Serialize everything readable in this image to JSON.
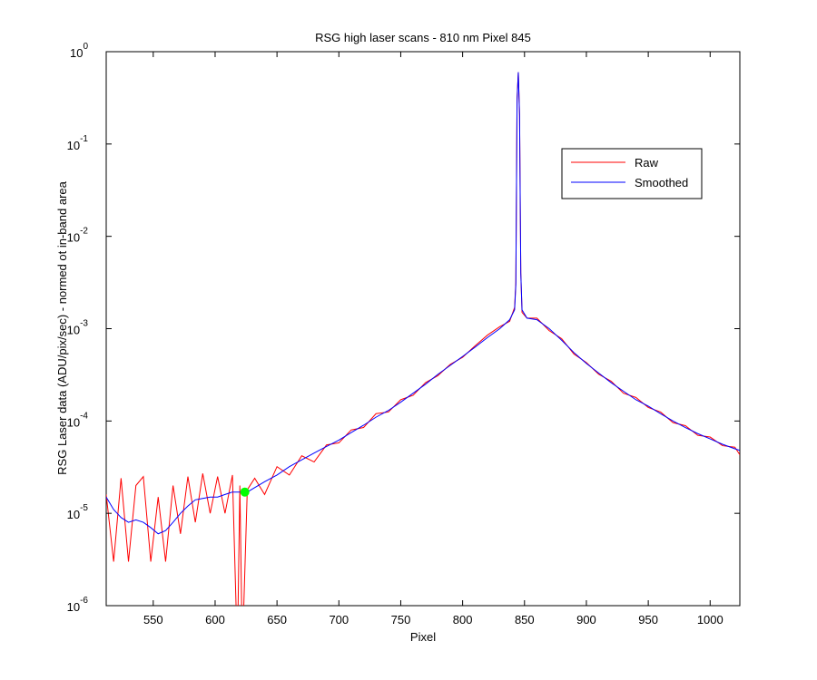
{
  "chart_data": {
    "type": "line",
    "title": "RSG high laser scans  - 810 nm    Pixel 845",
    "xlabel": "Pixel",
    "ylabel": "RSG Laser data (ADU/pix/sec) - normed ot in-band area",
    "yscale": "log",
    "legend": "northeast",
    "x": [
      512,
      518,
      524,
      530,
      536,
      542,
      548,
      554,
      560,
      566,
      572,
      578,
      584,
      590,
      596,
      602,
      608,
      614,
      618,
      620,
      622,
      626,
      632,
      640,
      650,
      660,
      670,
      680,
      690,
      700,
      710,
      720,
      730,
      740,
      750,
      760,
      770,
      780,
      790,
      800,
      810,
      820,
      830,
      838,
      842,
      843,
      844,
      845,
      846,
      847,
      848,
      852,
      860,
      870,
      880,
      890,
      900,
      910,
      920,
      930,
      940,
      950,
      960,
      970,
      980,
      990,
      1000,
      1010,
      1020,
      1024
    ],
    "series": [
      {
        "name": "Raw",
        "color": "#ff0000",
        "values": [
          1.6e-05,
          3e-06,
          2.4e-05,
          3e-06,
          2e-05,
          2.5e-05,
          3e-06,
          1.5e-05,
          3e-06,
          2e-05,
          6e-06,
          2.5e-05,
          8e-06,
          2.7e-05,
          1e-05,
          2.5e-05,
          1e-05,
          2.6e-05,
          3e-07,
          2e-05,
          3e-07,
          1.8e-05,
          2.4e-05,
          1.6e-05,
          3.2e-05,
          2.6e-05,
          4.2e-05,
          3.6e-05,
          5.5e-05,
          5.8e-05,
          8e-05,
          8.5e-05,
          0.00012,
          0.000125,
          0.00017,
          0.00019,
          0.00026,
          0.00031,
          0.00041,
          0.00049,
          0.00065,
          0.00085,
          0.00105,
          0.0012,
          0.0017,
          0.0032,
          0.32,
          0.6,
          0.21,
          0.004,
          0.0015,
          0.0013,
          0.0013,
          0.00095,
          0.00078,
          0.00053,
          0.00043,
          0.00032,
          0.00027,
          0.0002,
          0.00018,
          0.00014,
          0.000125,
          9.6e-05,
          8.9e-05,
          7e-05,
          6.7e-05,
          5.4e-05,
          5.2e-05,
          4.3e-05
        ]
      },
      {
        "name": "Smoothed",
        "color": "#0000ff",
        "values": [
          1.5e-05,
          1.1e-05,
          9e-06,
          8e-06,
          8.5e-06,
          8e-06,
          7e-06,
          6e-06,
          6.5e-06,
          8e-06,
          1e-05,
          1.2e-05,
          1.4e-05,
          1.45e-05,
          1.5e-05,
          1.5e-05,
          1.6e-05,
          1.7e-05,
          1.7e-05,
          1.7e-05,
          1.7e-05,
          1.7e-05,
          1.9e-05,
          2.2e-05,
          2.6e-05,
          3.2e-05,
          3.8e-05,
          4.5e-05,
          5.3e-05,
          6.2e-05,
          7.5e-05,
          9e-05,
          0.00011,
          0.00013,
          0.00016,
          0.0002,
          0.00025,
          0.00032,
          0.0004,
          0.0005,
          0.00063,
          0.0008,
          0.001,
          0.00125,
          0.0016,
          0.003,
          0.3,
          0.6,
          0.2,
          0.004,
          0.0016,
          0.0013,
          0.00125,
          0.001,
          0.00075,
          0.00055,
          0.00042,
          0.00033,
          0.00026,
          0.00021,
          0.00017,
          0.000145,
          0.00012,
          0.0001,
          8.5e-05,
          7.3e-05,
          6.4e-05,
          5.6e-05,
          5e-05,
          4.8e-05
        ]
      }
    ],
    "marker": {
      "x": 624,
      "y": 1.7e-05,
      "color": "#00ff00"
    },
    "xlim": [
      512,
      1024
    ],
    "xticks": [
      550,
      600,
      650,
      700,
      750,
      800,
      850,
      900,
      950,
      1000
    ],
    "ylim": [
      1e-06,
      1
    ],
    "yticks": [
      {
        "value": 1e-06,
        "label": "10",
        "exponent": "-6"
      },
      {
        "value": 1e-05,
        "label": "10",
        "exponent": "-5"
      },
      {
        "value": 0.0001,
        "label": "10",
        "exponent": "-4"
      },
      {
        "value": 0.001,
        "label": "10",
        "exponent": "-3"
      },
      {
        "value": 0.01,
        "label": "10",
        "exponent": "-2"
      },
      {
        "value": 0.1,
        "label": "10",
        "exponent": "-1"
      },
      {
        "value": 1,
        "label": "10",
        "exponent": "0"
      }
    ]
  }
}
